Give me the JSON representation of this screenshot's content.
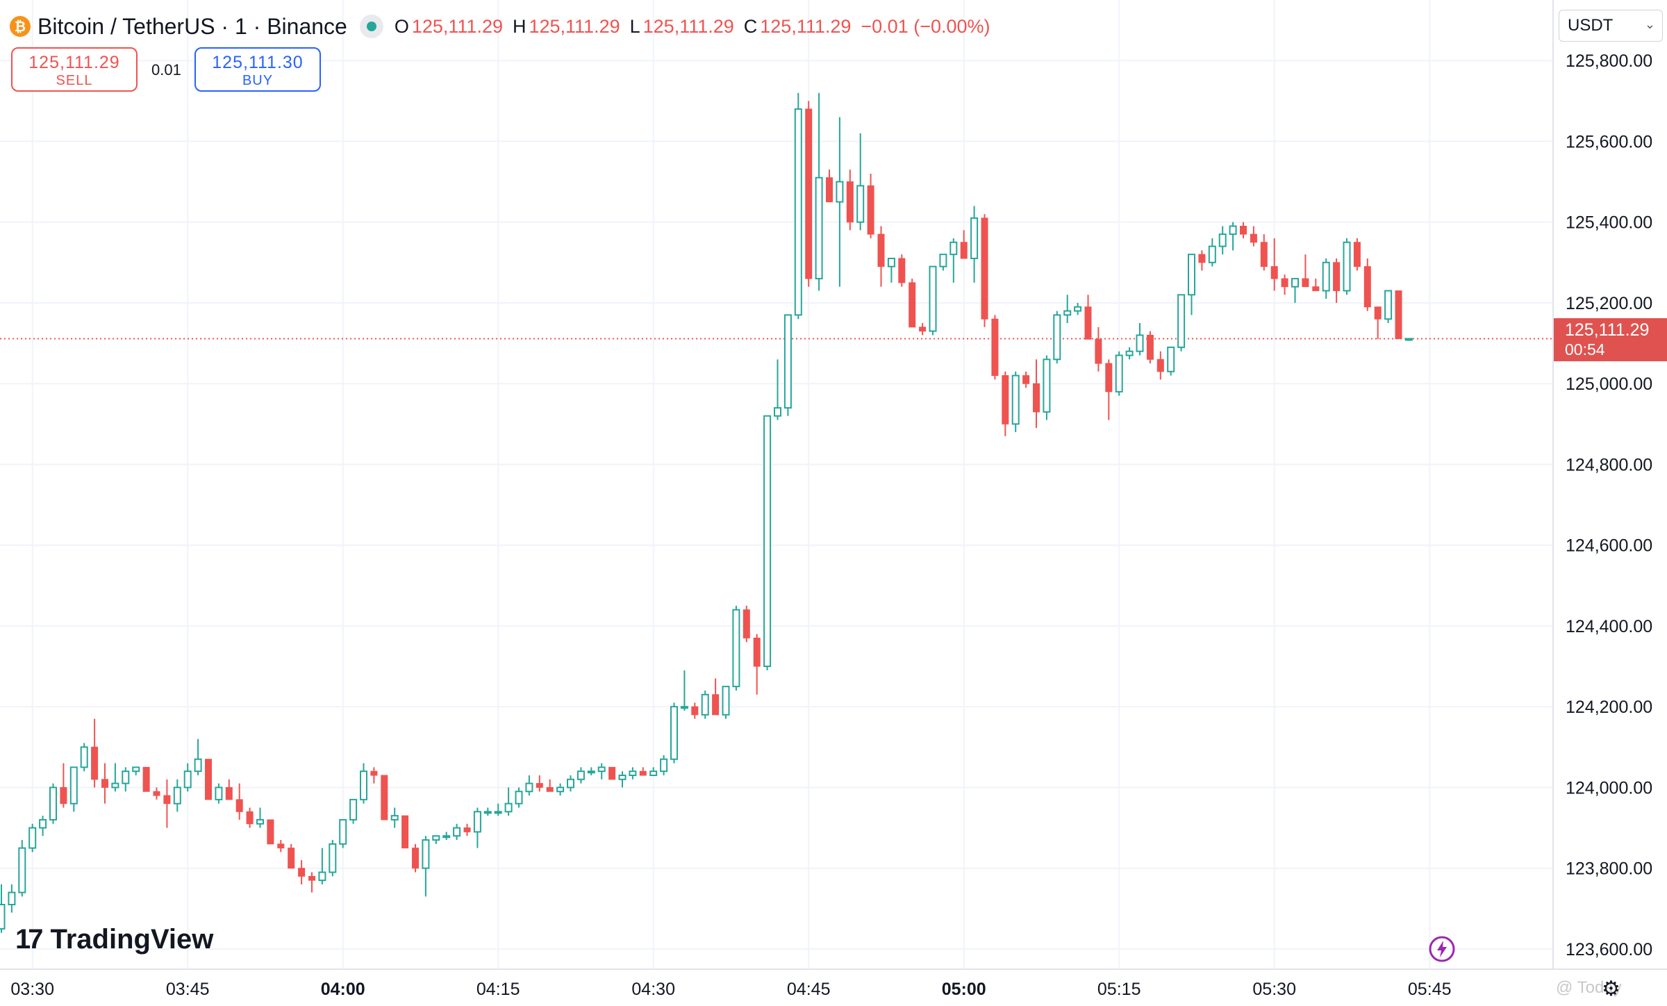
{
  "header": {
    "symbol_title": "Bitcoin / TetherUS · 1 · Binance",
    "coin_icon": "bitcoin-icon",
    "ohlc": {
      "o_key": "O",
      "o_val": "125,111.29",
      "h_key": "H",
      "h_val": "125,111.29",
      "l_key": "L",
      "l_val": "125,111.29",
      "c_key": "C",
      "c_val": "125,111.29",
      "change": "−0.01 (−0.00%)"
    }
  },
  "trade": {
    "sell_price": "125,111.29",
    "sell_label": "SELL",
    "spread": "0.01",
    "buy_price": "125,111.30",
    "buy_label": "BUY"
  },
  "currency": {
    "selected": "USDT"
  },
  "last_price": {
    "price": "125,111.29",
    "countdown": "00:54"
  },
  "branding": {
    "logo_mark": "17",
    "logo_text": "TradingView",
    "watermark": "@ Today"
  },
  "colors": {
    "up": "#26a69a",
    "down": "#ef5350",
    "grid": "#f0f3fa",
    "price_line": "#ef5350"
  },
  "chart_data": {
    "type": "candlestick",
    "interval": "1 minute",
    "ylim": [
      123550,
      125950
    ],
    "y_ticks": [
      "125,800.00",
      "125,600.00",
      "125,400.00",
      "125,200.00",
      "125,000.00",
      "124,800.00",
      "124,600.00",
      "124,400.00",
      "124,200.00",
      "124,000.00",
      "123,800.00",
      "123,600.00"
    ],
    "x_ticks": [
      "03:30",
      "03:45",
      "04:00",
      "04:15",
      "04:30",
      "04:45",
      "05:00",
      "05:15",
      "05:30",
      "05:45"
    ],
    "x_ticks_bold": [
      "04:00",
      "05:00"
    ],
    "first_time": "03:27",
    "last_price_value": 125111.29,
    "candles": [
      [
        123650,
        123760,
        123640,
        123710
      ],
      [
        123710,
        123760,
        123690,
        123740
      ],
      [
        123740,
        123870,
        123730,
        123850
      ],
      [
        123850,
        123910,
        123840,
        123900
      ],
      [
        123900,
        123930,
        123880,
        123920
      ],
      [
        123920,
        124010,
        123910,
        124000
      ],
      [
        124000,
        124060,
        123950,
        123960
      ],
      [
        123960,
        124050,
        123940,
        124050
      ],
      [
        124050,
        124110,
        124040,
        124100
      ],
      [
        124100,
        124170,
        124000,
        124020
      ],
      [
        124020,
        124060,
        123960,
        124000
      ],
      [
        124000,
        124060,
        123990,
        124010
      ],
      [
        124010,
        124050,
        123990,
        124040
      ],
      [
        124040,
        124050,
        124030,
        124050
      ],
      [
        124050,
        124050,
        123990,
        123990
      ],
      [
        123990,
        124000,
        123970,
        123980
      ],
      [
        123980,
        124020,
        123900,
        123960
      ],
      [
        123960,
        124020,
        123940,
        124000
      ],
      [
        124000,
        124060,
        123990,
        124040
      ],
      [
        124040,
        124120,
        124030,
        124070
      ],
      [
        124070,
        124070,
        123980,
        123970
      ],
      [
        123970,
        124010,
        123960,
        124000
      ],
      [
        124000,
        124020,
        123980,
        123970
      ],
      [
        123970,
        124010,
        123920,
        123940
      ],
      [
        123940,
        123950,
        123900,
        123910
      ],
      [
        123910,
        123950,
        123900,
        123920
      ],
      [
        123920,
        123920,
        123860,
        123860
      ],
      [
        123860,
        123870,
        123840,
        123850
      ],
      [
        123850,
        123860,
        123800,
        123800
      ],
      [
        123800,
        123820,
        123760,
        123780
      ],
      [
        123780,
        123790,
        123740,
        123770
      ],
      [
        123770,
        123850,
        123760,
        123790
      ],
      [
        123790,
        123870,
        123780,
        123860
      ],
      [
        123860,
        123920,
        123850,
        123920
      ],
      [
        123920,
        123970,
        123910,
        123970
      ],
      [
        123970,
        124060,
        123960,
        124040
      ],
      [
        124040,
        124050,
        124010,
        124030
      ],
      [
        124030,
        124030,
        123920,
        123920
      ],
      [
        123920,
        123950,
        123900,
        123930
      ],
      [
        123930,
        123930,
        123850,
        123850
      ],
      [
        123850,
        123860,
        123790,
        123800
      ],
      [
        123800,
        123880,
        123730,
        123870
      ],
      [
        123870,
        123880,
        123860,
        123880
      ],
      [
        123880,
        123890,
        123870,
        123880
      ],
      [
        123880,
        123910,
        123870,
        123900
      ],
      [
        123900,
        123910,
        123880,
        123890
      ],
      [
        123890,
        123950,
        123850,
        123940
      ],
      [
        123940,
        123950,
        123930,
        123940
      ],
      [
        123940,
        123960,
        123930,
        123940
      ],
      [
        123940,
        124000,
        123930,
        123960
      ],
      [
        123960,
        124000,
        123950,
        123990
      ],
      [
        123990,
        124030,
        123980,
        124010
      ],
      [
        124010,
        124030,
        123990,
        124000
      ],
      [
        124000,
        124020,
        123990,
        123990
      ],
      [
        123990,
        124010,
        123980,
        124000
      ],
      [
        124000,
        124030,
        123990,
        124020
      ],
      [
        124020,
        124050,
        124010,
        124040
      ],
      [
        124040,
        124050,
        124030,
        124040
      ],
      [
        124040,
        124060,
        124020,
        124050
      ],
      [
        124050,
        124050,
        124020,
        124020
      ],
      [
        124020,
        124040,
        124000,
        124030
      ],
      [
        124030,
        124050,
        124020,
        124040
      ],
      [
        124040,
        124050,
        124030,
        124030
      ],
      [
        124030,
        124050,
        124030,
        124040
      ],
      [
        124040,
        124080,
        124030,
        124070
      ],
      [
        124070,
        124210,
        124060,
        124200
      ],
      [
        124200,
        124290,
        124190,
        124200
      ],
      [
        124200,
        124210,
        124170,
        124180
      ],
      [
        124180,
        124240,
        124170,
        124230
      ],
      [
        124230,
        124270,
        124180,
        124180
      ],
      [
        124180,
        124250,
        124170,
        124250
      ],
      [
        124250,
        124450,
        124240,
        124440
      ],
      [
        124440,
        124450,
        124360,
        124370
      ],
      [
        124370,
        124380,
        124230,
        124300
      ],
      [
        124300,
        124920,
        124290,
        124920
      ],
      [
        124920,
        125060,
        124910,
        124940
      ],
      [
        124940,
        125170,
        124920,
        125170
      ],
      [
        125170,
        125720,
        125160,
        125680
      ],
      [
        125680,
        125700,
        125240,
        125260
      ],
      [
        125260,
        125720,
        125230,
        125510
      ],
      [
        125510,
        125530,
        125450,
        125450
      ],
      [
        125450,
        125660,
        125240,
        125500
      ],
      [
        125500,
        125530,
        125380,
        125400
      ],
      [
        125400,
        125620,
        125380,
        125490
      ],
      [
        125490,
        125520,
        125360,
        125370
      ],
      [
        125370,
        125390,
        125240,
        125290
      ],
      [
        125290,
        125310,
        125250,
        125310
      ],
      [
        125310,
        125320,
        125240,
        125250
      ],
      [
        125250,
        125260,
        125140,
        125140
      ],
      [
        125140,
        125150,
        125120,
        125130
      ],
      [
        125130,
        125290,
        125120,
        125290
      ],
      [
        125290,
        125320,
        125280,
        125320
      ],
      [
        125320,
        125360,
        125250,
        125350
      ],
      [
        125350,
        125380,
        125320,
        125310
      ],
      [
        125310,
        125440,
        125250,
        125410
      ],
      [
        125410,
        125420,
        125140,
        125160
      ],
      [
        125160,
        125170,
        125010,
        125020
      ],
      [
        125020,
        125030,
        124870,
        124900
      ],
      [
        124900,
        125030,
        124880,
        125020
      ],
      [
        125020,
        125030,
        124990,
        125000
      ],
      [
        125000,
        125060,
        124890,
        124930
      ],
      [
        124930,
        125070,
        124910,
        125060
      ],
      [
        125060,
        125180,
        125050,
        125170
      ],
      [
        125170,
        125220,
        125150,
        125180
      ],
      [
        125180,
        125200,
        125170,
        125190
      ],
      [
        125190,
        125220,
        125110,
        125110
      ],
      [
        125110,
        125140,
        125030,
        125050
      ],
      [
        125050,
        125060,
        124910,
        124980
      ],
      [
        124980,
        125080,
        124970,
        125070
      ],
      [
        125070,
        125090,
        125060,
        125080
      ],
      [
        125080,
        125150,
        125070,
        125120
      ],
      [
        125120,
        125130,
        125050,
        125060
      ],
      [
        125060,
        125080,
        125010,
        125030
      ],
      [
        125030,
        125090,
        125020,
        125090
      ],
      [
        125090,
        125220,
        125080,
        125220
      ],
      [
        125220,
        125320,
        125170,
        125320
      ],
      [
        125320,
        125330,
        125280,
        125300
      ],
      [
        125300,
        125360,
        125290,
        125340
      ],
      [
        125340,
        125390,
        125320,
        125370
      ],
      [
        125370,
        125400,
        125330,
        125390
      ],
      [
        125390,
        125400,
        125360,
        125370
      ],
      [
        125370,
        125390,
        125340,
        125350
      ],
      [
        125350,
        125370,
        125280,
        125290
      ],
      [
        125290,
        125360,
        125230,
        125260
      ],
      [
        125260,
        125270,
        125220,
        125240
      ],
      [
        125240,
        125260,
        125200,
        125260
      ],
      [
        125260,
        125320,
        125240,
        125240
      ],
      [
        125240,
        125260,
        125230,
        125230
      ],
      [
        125230,
        125310,
        125210,
        125300
      ],
      [
        125300,
        125310,
        125200,
        125230
      ],
      [
        125230,
        125360,
        125220,
        125350
      ],
      [
        125350,
        125360,
        125280,
        125290
      ],
      [
        125290,
        125310,
        125180,
        125190
      ],
      [
        125190,
        125190,
        125110,
        125160
      ],
      [
        125160,
        125230,
        125150,
        125230
      ],
      [
        125230,
        125230,
        125110,
        125111.29
      ],
      [
        125111.29,
        125111.29,
        125111.29,
        125111.29
      ]
    ]
  }
}
